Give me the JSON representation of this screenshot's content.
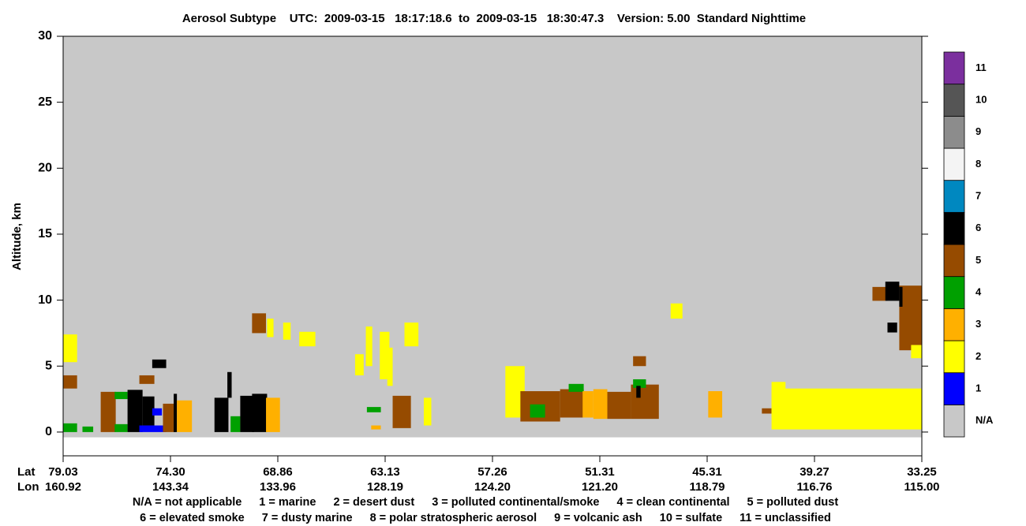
{
  "chart_data": {
    "type": "curtain",
    "title": "Aerosol Subtype    UTC:  2009-03-15   18:17:18.6  to  2009-03-15   18:30:47.3    Version: 5.00  Standard Nighttime",
    "ylabel": "Altitude, km",
    "x_row_labels": [
      "Lat",
      "Lon"
    ],
    "xlim": [
      0,
      8
    ],
    "xticks": [
      {
        "value": 0,
        "label": "79.03"
      },
      {
        "value": 1,
        "label": "74.30"
      },
      {
        "value": 2,
        "label": "68.86"
      },
      {
        "value": 3,
        "label": "63.13"
      },
      {
        "value": 4,
        "label": "57.26"
      },
      {
        "value": 5,
        "label": "51.31"
      },
      {
        "value": 6,
        "label": "45.31"
      },
      {
        "value": 7,
        "label": "39.27"
      },
      {
        "value": 8,
        "label": "33.25"
      }
    ],
    "xticks_lon": [
      {
        "value": 0,
        "label": "160.92"
      },
      {
        "value": 1,
        "label": "143.34"
      },
      {
        "value": 2,
        "label": "133.96"
      },
      {
        "value": 3,
        "label": "128.19"
      },
      {
        "value": 4,
        "label": "124.20"
      },
      {
        "value": 5,
        "label": "121.20"
      },
      {
        "value": 6,
        "label": "118.79"
      },
      {
        "value": 7,
        "label": "116.76"
      },
      {
        "value": 8,
        "label": "115.00"
      }
    ],
    "ylim": [
      -1.8,
      30
    ],
    "yticks": [
      0,
      5,
      10,
      15,
      20,
      25,
      30
    ],
    "classes": [
      {
        "label": "N/A",
        "color": "#c8c8c8"
      },
      {
        "label": "1",
        "color": "#0000ff"
      },
      {
        "label": "2",
        "color": "#ffff00"
      },
      {
        "label": "3",
        "color": "#ffb000"
      },
      {
        "label": "4",
        "color": "#00a000"
      },
      {
        "label": "5",
        "color": "#964b00"
      },
      {
        "label": "6",
        "color": "#000000"
      },
      {
        "label": "7",
        "color": "#0088c0"
      },
      {
        "label": "8",
        "color": "#f4f4f4"
      },
      {
        "label": "9",
        "color": "#8c8c8c"
      },
      {
        "label": "10",
        "color": "#555555"
      },
      {
        "label": "11",
        "color": "#7b2f9e"
      }
    ],
    "notes": [
      [
        "N/A = not applicable",
        "1 = marine",
        "2 = desert dust",
        "3 = polluted continental/smoke",
        "4 = clean continental",
        "5 = polluted dust"
      ],
      [
        "6 = elevated smoke",
        "7 = dusty marine",
        "8 = polar stratospheric aerosol",
        "9 = volcanic ash",
        "10 = sulfate",
        "11 = unclassified"
      ]
    ],
    "regions": [
      {
        "x": [
          0,
          8
        ],
        "y": [
          -0.4,
          30
        ],
        "class": 0
      },
      {
        "x": [
          0,
          0.13
        ],
        "y": [
          5.3,
          7.4
        ],
        "class": 2
      },
      {
        "x": [
          0,
          0.13
        ],
        "y": [
          3.3,
          4.3
        ],
        "class": 5
      },
      {
        "x": [
          0,
          0.13
        ],
        "y": [
          0,
          0.66
        ],
        "class": 4
      },
      {
        "x": [
          0.18,
          0.28
        ],
        "y": [
          0,
          0.42
        ],
        "class": 4
      },
      {
        "x": [
          0.35,
          0.49
        ],
        "y": [
          0,
          3.05
        ],
        "class": 5
      },
      {
        "x": [
          0.48,
          0.6
        ],
        "y": [
          2.5,
          3.05
        ],
        "class": 4
      },
      {
        "x": [
          0.48,
          0.6
        ],
        "y": [
          0,
          0.6
        ],
        "class": 4
      },
      {
        "x": [
          0.6,
          0.74
        ],
        "y": [
          0,
          3.2
        ],
        "class": 6
      },
      {
        "x": [
          0.74,
          0.85
        ],
        "y": [
          0.5,
          2.7
        ],
        "class": 6
      },
      {
        "x": [
          0.71,
          0.96
        ],
        "y": [
          0,
          0.5
        ],
        "class": 1
      },
      {
        "x": [
          0.83,
          0.92
        ],
        "y": [
          1.26,
          1.8
        ],
        "class": 1
      },
      {
        "x": [
          0.71,
          0.85
        ],
        "y": [
          3.65,
          4.3
        ],
        "class": 5
      },
      {
        "x": [
          0.83,
          0.96
        ],
        "y": [
          4.85,
          5.5
        ],
        "class": 6
      },
      {
        "x": [
          0.93,
          1.04
        ],
        "y": [
          0,
          2.15
        ],
        "class": 5
      },
      {
        "x": [
          1.03,
          1.06
        ],
        "y": [
          0,
          2.9
        ],
        "class": 6
      },
      {
        "x": [
          1.06,
          1.2
        ],
        "y": [
          0,
          2.4
        ],
        "class": 3
      },
      {
        "x": [
          1.41,
          1.54
        ],
        "y": [
          0,
          2.6
        ],
        "class": 6
      },
      {
        "x": [
          1.53,
          1.57
        ],
        "y": [
          2.6,
          4.55
        ],
        "class": 6
      },
      {
        "x": [
          1.56,
          1.65
        ],
        "y": [
          0,
          1.2
        ],
        "class": 4
      },
      {
        "x": [
          1.65,
          1.78
        ],
        "y": [
          0,
          2.75
        ],
        "class": 6
      },
      {
        "x": [
          1.76,
          1.9
        ],
        "y": [
          0,
          2.9
        ],
        "class": 6
      },
      {
        "x": [
          1.89,
          2.02
        ],
        "y": [
          0,
          2.6
        ],
        "class": 3
      },
      {
        "x": [
          1.76,
          1.89
        ],
        "y": [
          7.5,
          9
        ],
        "class": 5
      },
      {
        "x": [
          1.9,
          1.96
        ],
        "y": [
          7.2,
          8.6
        ],
        "class": 2
      },
      {
        "x": [
          2.05,
          2.12
        ],
        "y": [
          7.0,
          8.3
        ],
        "class": 2
      },
      {
        "x": [
          2.2,
          2.35
        ],
        "y": [
          6.5,
          7.6
        ],
        "class": 2
      },
      {
        "x": [
          2.72,
          2.8
        ],
        "y": [
          4.3,
          5.9
        ],
        "class": 2
      },
      {
        "x": [
          2.82,
          2.88
        ],
        "y": [
          5,
          8
        ],
        "class": 2
      },
      {
        "x": [
          2.95,
          3.04
        ],
        "y": [
          4,
          7.6
        ],
        "class": 2
      },
      {
        "x": [
          3.02,
          3.07
        ],
        "y": [
          3.5,
          6.4
        ],
        "class": 2
      },
      {
        "x": [
          3.07,
          3.24
        ],
        "y": [
          0.3,
          2.75
        ],
        "class": 5
      },
      {
        "x": [
          3.18,
          3.31
        ],
        "y": [
          6.5,
          8.3
        ],
        "class": 2
      },
      {
        "x": [
          2.83,
          2.96
        ],
        "y": [
          1.5,
          1.9
        ],
        "class": 4
      },
      {
        "x": [
          2.87,
          2.96
        ],
        "y": [
          0.2,
          0.5
        ],
        "class": 3
      },
      {
        "x": [
          3.36,
          3.43
        ],
        "y": [
          0.5,
          2.6
        ],
        "class": 2
      },
      {
        "x": [
          4.12,
          4.3
        ],
        "y": [
          1.1,
          5
        ],
        "class": 2
      },
      {
        "x": [
          4.26,
          4.63
        ],
        "y": [
          0.8,
          3.1
        ],
        "class": 5
      },
      {
        "x": [
          4.35,
          4.49
        ],
        "y": [
          1.1,
          2.1
        ],
        "class": 4
      },
      {
        "x": [
          4.63,
          4.85
        ],
        "y": [
          1.1,
          3.25
        ],
        "class": 5
      },
      {
        "x": [
          4.71,
          4.85
        ],
        "y": [
          3.05,
          3.65
        ],
        "class": 4
      },
      {
        "x": [
          4.84,
          4.94
        ],
        "y": [
          1.1,
          3.1
        ],
        "class": 3
      },
      {
        "x": [
          4.94,
          5.07
        ],
        "y": [
          1,
          3.25
        ],
        "class": 3
      },
      {
        "x": [
          5.07,
          5.29
        ],
        "y": [
          1,
          3.05
        ],
        "class": 5
      },
      {
        "x": [
          5.29,
          5.55
        ],
        "y": [
          1,
          3.6
        ],
        "class": 5
      },
      {
        "x": [
          5.31,
          5.43
        ],
        "y": [
          3.35,
          4
        ],
        "class": 4
      },
      {
        "x": [
          5.34,
          5.38
        ],
        "y": [
          2.6,
          3.5
        ],
        "class": 6
      },
      {
        "x": [
          5.31,
          5.43
        ],
        "y": [
          5,
          5.75
        ],
        "class": 5
      },
      {
        "x": [
          5.66,
          5.77
        ],
        "y": [
          8.6,
          9.75
        ],
        "class": 2
      },
      {
        "x": [
          6.01,
          6.14
        ],
        "y": [
          1.1,
          3.1
        ],
        "class": 3
      },
      {
        "x": [
          6.51,
          6.6
        ],
        "y": [
          1.4,
          1.8
        ],
        "class": 5
      },
      {
        "x": [
          6.6,
          8
        ],
        "y": [
          0.2,
          3.3
        ],
        "class": 2
      },
      {
        "x": [
          6.6,
          6.73
        ],
        "y": [
          1.1,
          3.8
        ],
        "class": 2
      },
      {
        "x": [
          7.54,
          7.68
        ],
        "y": [
          9.95,
          11
        ],
        "class": 5
      },
      {
        "x": [
          7.66,
          7.79
        ],
        "y": [
          9.95,
          11.4
        ],
        "class": 6
      },
      {
        "x": [
          7.79,
          8
        ],
        "y": [
          6.2,
          11.1
        ],
        "class": 5
      },
      {
        "x": [
          7.68,
          7.77
        ],
        "y": [
          7.55,
          8.3
        ],
        "class": 6
      },
      {
        "x": [
          7.79,
          7.82
        ],
        "y": [
          9.5,
          11
        ],
        "class": 6
      },
      {
        "x": [
          7.9,
          8
        ],
        "y": [
          5.6,
          6.6
        ],
        "class": 2
      }
    ]
  }
}
